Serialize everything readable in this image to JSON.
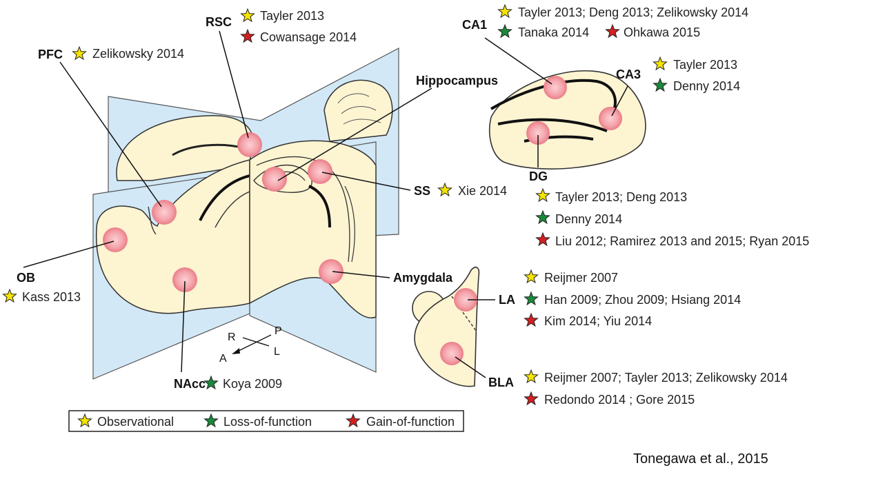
{
  "colors": {
    "observational": "#f4e400",
    "loss_of_function": "#1a8a3a",
    "gain_of_function": "#d42020",
    "tissue": "#fdf4d2",
    "plane": "#cfe6f5",
    "spot": "#f08f98"
  },
  "regions": {
    "rsc": "RSC",
    "pfc": "PFC",
    "hippocampus": "Hippocampus",
    "ss": "SS",
    "ob": "OB",
    "amygdala": "Amygdala",
    "nacc": "NAcc",
    "ca1": "CA1",
    "ca3": "CA3",
    "dg": "DG",
    "la": "LA",
    "bla": "BLA"
  },
  "citations": {
    "rsc_1": "Tayler 2013",
    "rsc_2": "Cowansage 2014",
    "pfc_1": "Zelikowsky 2014",
    "ss_1": "Xie 2014",
    "ob_1": "Kass 2013",
    "nacc_1": "Koya 2009",
    "ca1_1": "Tayler 2013; Deng 2013; Zelikowsky 2014",
    "ca1_2": "Tanaka 2014",
    "ca1_3": "Ohkawa 2015",
    "ca3_1": "Tayler 2013",
    "ca3_2": "Denny 2014",
    "dg_1": "Tayler 2013; Deng 2013",
    "dg_2": "Denny 2014",
    "dg_3": "Liu 2012; Ramirez 2013 and 2015; Ryan 2015",
    "la_1": "Reijmer 2007",
    "la_2": "Han 2009; Zhou 2009; Hsiang 2014",
    "la_3": "Kim 2014; Yiu 2014",
    "bla_1": "Reijmer 2007; Tayler 2013; Zelikowsky 2014",
    "bla_2": "Redondo 2014 ; Gore 2015"
  },
  "directions": {
    "r": "R",
    "p": "P",
    "a": "A",
    "l": "L"
  },
  "legend": {
    "observational": "Observational",
    "loss_of_function": "Loss-of-function",
    "gain_of_function": "Gain-of-function"
  },
  "credit": "Tonegawa et al., 2015",
  "icons": {
    "star": "star-icon",
    "spot": "activation-spot"
  }
}
